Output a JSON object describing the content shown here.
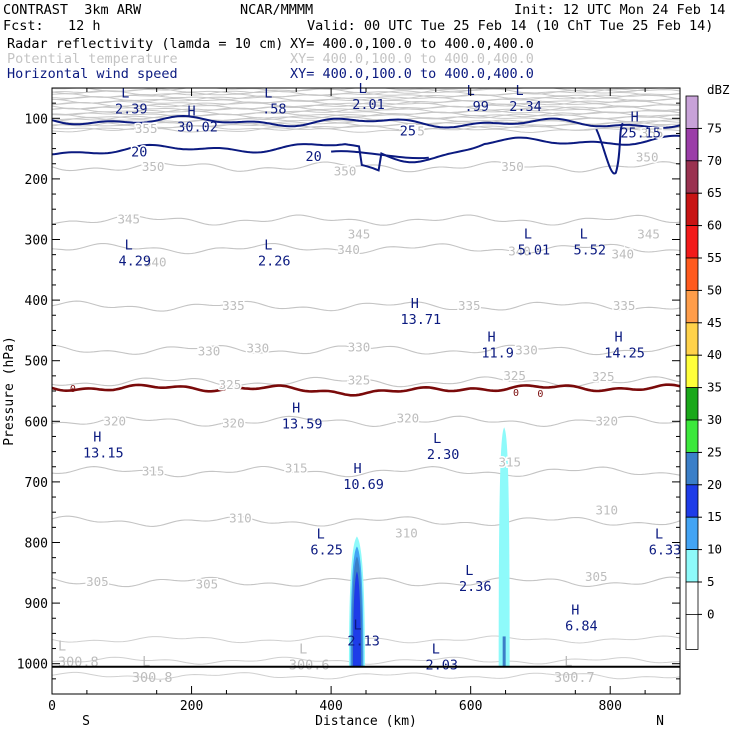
{
  "header": {
    "model": "CONTRAST  3km ARW",
    "center": "NCAR/MMMM",
    "init": "Init: 12 UTC Mon 24 Feb 14",
    "fcst": "Fcst:   12 h",
    "valid": "Valid: 00 UTC Tue 25 Feb 14 (10 ChT Tue 25 Feb 14)",
    "fields": [
      {
        "name": "Radar reflectivity (lamda = 10 cm)",
        "xy": "XY= 400.0,100.0 to 400.0,400.0",
        "color": "#000000"
      },
      {
        "name": "Potential temperature",
        "xy": "XY= 400.0,100.0 to 400.0,400.0",
        "color": "#c4c4c4"
      },
      {
        "name": "Horizontal wind speed",
        "xy": "XY= 400.0,100.0 to 400.0,400.0",
        "color": "#0b1a80"
      }
    ]
  },
  "chart_data": {
    "type": "cross-section",
    "xlabel": "Distance (km)",
    "ylabel": "Pressure (hPa)",
    "xlim": [
      0,
      900
    ],
    "ylim": [
      1050,
      50
    ],
    "x_ticks": [
      0,
      200,
      400,
      600,
      800
    ],
    "y_ticks": [
      100,
      200,
      300,
      400,
      500,
      600,
      700,
      800,
      900,
      1000
    ],
    "end_labels": {
      "left": "S",
      "right": "N"
    },
    "theta_contours": [
      {
        "label": "350",
        "p": 180
      },
      {
        "label": "345",
        "p": 268
      },
      {
        "label": "340",
        "p": 315
      },
      {
        "label": "335",
        "p": 410
      },
      {
        "label": "330",
        "p": 482
      },
      {
        "label": "325",
        "p": 535
      },
      {
        "label": "320",
        "p": 600
      },
      {
        "label": "315",
        "p": 683
      },
      {
        "label": "310",
        "p": 765
      },
      {
        "label": "305",
        "p": 865
      }
    ],
    "theta_labels": [
      {
        "text": "355",
        "x": 135,
        "p": 118
      },
      {
        "text": "355",
        "x": 518,
        "p": 122
      },
      {
        "text": "355",
        "x": 860,
        "p": 125
      },
      {
        "text": "350",
        "x": 145,
        "p": 180
      },
      {
        "text": "350",
        "x": 420,
        "p": 188
      },
      {
        "text": "350",
        "x": 660,
        "p": 180
      },
      {
        "text": "350",
        "x": 853,
        "p": 165
      },
      {
        "text": "345",
        "x": 110,
        "p": 267
      },
      {
        "text": "345",
        "x": 440,
        "p": 292
      },
      {
        "text": "345",
        "x": 855,
        "p": 292
      },
      {
        "text": "340",
        "x": 148,
        "p": 338
      },
      {
        "text": "340",
        "x": 425,
        "p": 317
      },
      {
        "text": "340",
        "x": 670,
        "p": 320
      },
      {
        "text": "340",
        "x": 818,
        "p": 325
      },
      {
        "text": "335",
        "x": 260,
        "p": 410
      },
      {
        "text": "335",
        "x": 598,
        "p": 410
      },
      {
        "text": "335",
        "x": 820,
        "p": 410
      },
      {
        "text": "330",
        "x": 225,
        "p": 485
      },
      {
        "text": "330",
        "x": 295,
        "p": 480
      },
      {
        "text": "330",
        "x": 440,
        "p": 478
      },
      {
        "text": "330",
        "x": 680,
        "p": 483
      },
      {
        "text": "325",
        "x": 255,
        "p": 540
      },
      {
        "text": "325",
        "x": 440,
        "p": 533
      },
      {
        "text": "325",
        "x": 663,
        "p": 525
      },
      {
        "text": "325",
        "x": 790,
        "p": 527
      },
      {
        "text": "320",
        "x": 90,
        "p": 600
      },
      {
        "text": "320",
        "x": 260,
        "p": 604
      },
      {
        "text": "320",
        "x": 510,
        "p": 595
      },
      {
        "text": "320",
        "x": 795,
        "p": 600
      },
      {
        "text": "315",
        "x": 145,
        "p": 683
      },
      {
        "text": "315",
        "x": 350,
        "p": 678
      },
      {
        "text": "315",
        "x": 656,
        "p": 668
      },
      {
        "text": "310",
        "x": 270,
        "p": 760
      },
      {
        "text": "310",
        "x": 508,
        "p": 785
      },
      {
        "text": "310",
        "x": 795,
        "p": 747
      },
      {
        "text": "305",
        "x": 65,
        "p": 865
      },
      {
        "text": "305",
        "x": 222,
        "p": 869
      },
      {
        "text": "305",
        "x": 780,
        "p": 857
      }
    ],
    "wind_contours": [
      {
        "label": "25",
        "p_west": 103,
        "p_east": 110
      },
      {
        "label": "20",
        "p_west": 155,
        "p_east": 135
      }
    ],
    "wind_labels": [
      {
        "text": "25",
        "x": 510,
        "p": 120
      },
      {
        "text": "20",
        "x": 125,
        "p": 155
      },
      {
        "text": "20",
        "x": 375,
        "p": 162
      }
    ],
    "zero_dbz_line_label": "0",
    "extrema_labels": [
      {
        "type": "L",
        "value": "2.39",
        "x": 105,
        "p": 72
      },
      {
        "type": "H",
        "value": "30.02",
        "x": 200,
        "p": 102
      },
      {
        "type": "L",
        "value": ".58",
        "x": 310,
        "p": 72
      },
      {
        "type": "L",
        "value": "2.01",
        "x": 445,
        "p": 65
      },
      {
        "type": "L",
        "value": ".99",
        "x": 600,
        "p": 68
      },
      {
        "type": "L",
        "value": "2.34",
        "x": 670,
        "p": 68
      },
      {
        "type": "H",
        "value": "25.15",
        "x": 835,
        "p": 112
      },
      {
        "type": "L",
        "value": "4.29",
        "x": 110,
        "p": 323
      },
      {
        "type": "L",
        "value": "2.26",
        "x": 310,
        "p": 323
      },
      {
        "type": "L",
        "value": "5.01",
        "x": 682,
        "p": 305
      },
      {
        "type": "L",
        "value": "5.52",
        "x": 762,
        "p": 305
      },
      {
        "type": "H",
        "value": "13.71",
        "x": 520,
        "p": 420
      },
      {
        "type": "H",
        "value": "11.9",
        "x": 630,
        "p": 475
      },
      {
        "type": "H",
        "value": "14.25",
        "x": 812,
        "p": 475
      },
      {
        "type": "H",
        "value": "13.59",
        "x": 350,
        "p": 592
      },
      {
        "type": "H",
        "value": "13.15",
        "x": 65,
        "p": 640
      },
      {
        "type": "L",
        "value": "2.30",
        "x": 552,
        "p": 642
      },
      {
        "type": "H",
        "value": "10.69",
        "x": 438,
        "p": 692
      },
      {
        "type": "L",
        "value": "6.25",
        "x": 385,
        "p": 800
      },
      {
        "type": "L",
        "value": "6.33",
        "x": 870,
        "p": 800
      },
      {
        "type": "L",
        "value": "2.36",
        "x": 598,
        "p": 860
      },
      {
        "type": "H",
        "value": "6.84",
        "x": 750,
        "p": 925
      },
      {
        "type": "L",
        "value": "2.13",
        "x": 438,
        "p": 950
      },
      {
        "type": "L",
        "value": "300.8",
        "x": 0,
        "p": 985
      },
      {
        "type": "L",
        "value": "300.8",
        "x": 135,
        "p": 1010
      },
      {
        "type": "L",
        "value": "300.6",
        "x": 360,
        "p": 990
      },
      {
        "type": "L",
        "value": "2.03",
        "x": 550,
        "p": 990
      },
      {
        "type": "L",
        "value": "300.7",
        "x": 740,
        "p": 1010
      }
    ],
    "reflectivity_cells": [
      {
        "x_center": 437,
        "top_p": 790,
        "max_dbz": 25
      },
      {
        "x_center": 648,
        "top_p": 610,
        "max_dbz": 10
      }
    ],
    "colorbar": {
      "units": "dBZ",
      "labels": [
        "75",
        "70",
        "65",
        "60",
        "55",
        "50",
        "45",
        "40",
        "35",
        "30",
        "25",
        "20",
        "15",
        "10",
        "5",
        "0"
      ],
      "colors": [
        "#c8a2d8",
        "#9b3da8",
        "#9a3250",
        "#c81414",
        "#f21a1a",
        "#ff5a1e",
        "#ff9d4a",
        "#ffd24a",
        "#ffff3a",
        "#1aa81a",
        "#3ce83c",
        "#3b7fc8",
        "#1e3ce8",
        "#43a4f4",
        "#8efafa",
        "#ffffff"
      ]
    }
  }
}
